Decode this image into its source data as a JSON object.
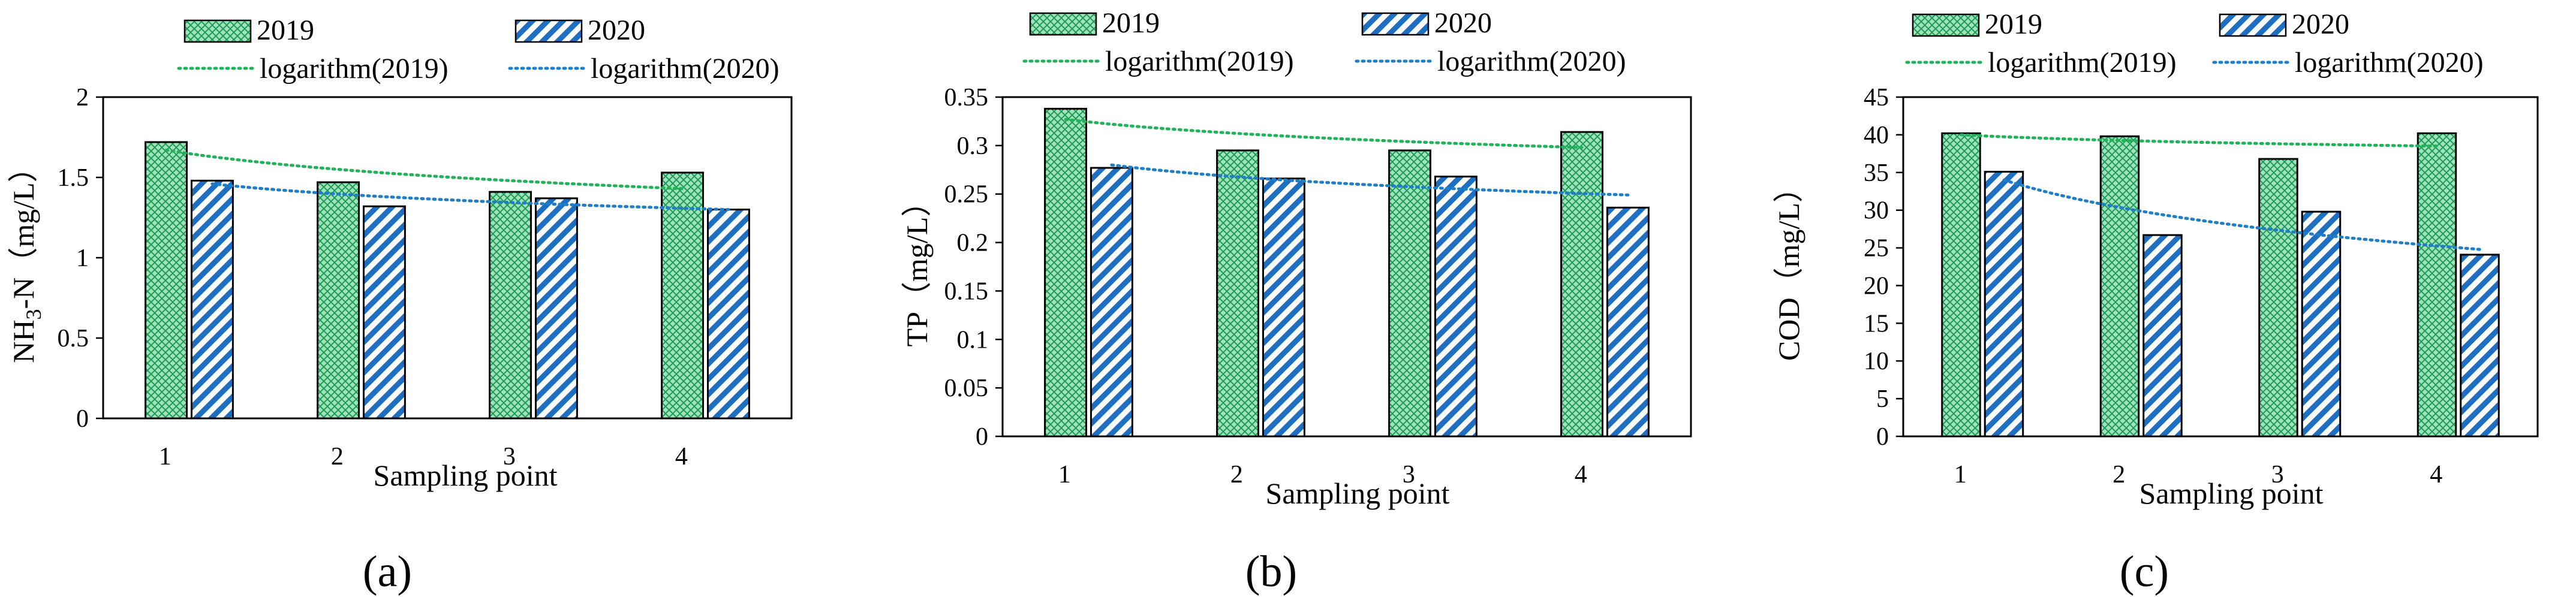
{
  "figure_caption_labels": [
    "(a)",
    "(b)",
    "(c)"
  ],
  "colors": {
    "series_2019_fill": "#9fe3bd",
    "series_2019_pattern": "#1f9a55",
    "series_2020_fill": "#ffffff",
    "series_2020_pattern": "#1e6fc2",
    "trend_2019": "#22b35a",
    "trend_2020": "#1e7ec8"
  },
  "chart_data": [
    {
      "panel": "(a)",
      "type": "bar",
      "categories": [
        "1",
        "2",
        "3",
        "4"
      ],
      "series": [
        {
          "name": "2019",
          "values": [
            1.72,
            1.47,
            1.41,
            1.53
          ]
        },
        {
          "name": "2020",
          "values": [
            1.48,
            1.32,
            1.37,
            1.3
          ]
        }
      ],
      "trendlines": [
        {
          "name": "logarithm(2019)",
          "series": "2019",
          "start": 1.67,
          "end": 1.43
        },
        {
          "name": "logarithm(2020)",
          "series": "2020",
          "start": 1.46,
          "end": 1.3
        }
      ],
      "xlabel": "Sampling point",
      "ylabel_parts": [
        "NH",
        "3",
        "-N（mg/L）"
      ],
      "ylim": [
        0,
        2
      ],
      "yticks": [
        "0",
        "0.5",
        "1",
        "1.5",
        "2"
      ],
      "legend": [
        "2019",
        "2020",
        "logarithm(2019)",
        "logarithm(2020)"
      ]
    },
    {
      "panel": "(b)",
      "type": "bar",
      "categories": [
        "1",
        "2",
        "3",
        "4"
      ],
      "series": [
        {
          "name": "2019",
          "values": [
            0.338,
            0.295,
            0.295,
            0.314
          ]
        },
        {
          "name": "2020",
          "values": [
            0.277,
            0.266,
            0.268,
            0.236
          ]
        }
      ],
      "trendlines": [
        {
          "name": "logarithm(2019)",
          "series": "2019",
          "start": 0.327,
          "end": 0.298
        },
        {
          "name": "logarithm(2020)",
          "series": "2020",
          "start": 0.28,
          "end": 0.249
        }
      ],
      "xlabel": "Sampling point",
      "ylabel_parts": [
        "TP（mg/L）"
      ],
      "ylim": [
        0,
        0.35
      ],
      "yticks": [
        "0",
        "0.05",
        "0.1",
        "0.15",
        "0.2",
        "0.25",
        "0.3",
        "0.35"
      ],
      "legend": [
        "2019",
        "2020",
        "logarithm(2019)",
        "logarithm(2020)"
      ]
    },
    {
      "panel": "(c)",
      "type": "bar",
      "categories": [
        "1",
        "2",
        "3",
        "4"
      ],
      "series": [
        {
          "name": "2019",
          "values": [
            40.2,
            39.8,
            36.8,
            40.2
          ]
        },
        {
          "name": "2020",
          "values": [
            35.1,
            26.7,
            29.8,
            24.1
          ]
        }
      ],
      "trendlines": [
        {
          "name": "logarithm(2019)",
          "series": "2019",
          "start": 40.0,
          "end": 38.5
        },
        {
          "name": "logarithm(2020)",
          "series": "2020",
          "start": 34.0,
          "end": 24.8
        }
      ],
      "xlabel": "Sampling point",
      "ylabel_parts": [
        "COD（mg/L）"
      ],
      "ylim": [
        0,
        45
      ],
      "yticks": [
        "0",
        "5",
        "10",
        "15",
        "20",
        "25",
        "30",
        "35",
        "40",
        "45"
      ],
      "legend": [
        "2019",
        "2020",
        "logarithm(2019)",
        "logarithm(2020)"
      ]
    }
  ]
}
